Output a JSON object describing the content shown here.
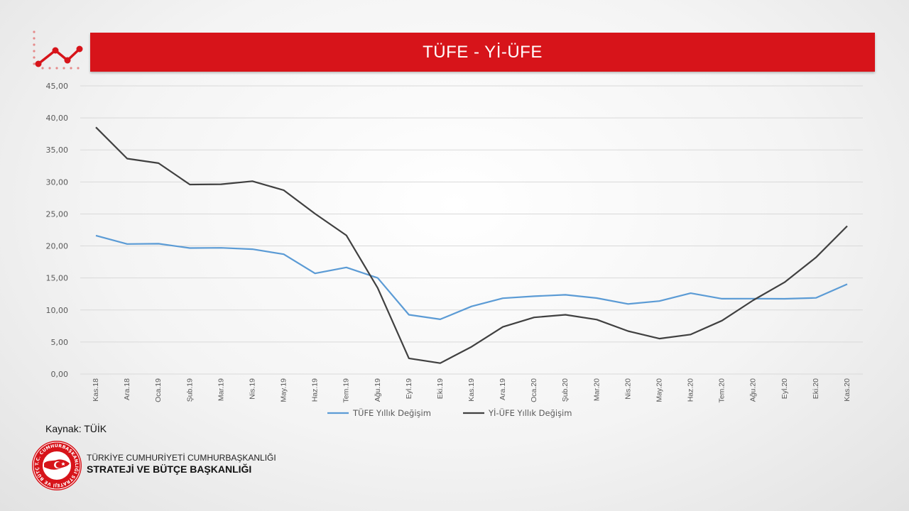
{
  "slide": {
    "title": "TÜFE - Yİ-ÜFE"
  },
  "footer": {
    "source": "Kaynak: TÜİK",
    "org_line1": "TÜRKİYE CUMHURİYETİ CUMHURBAŞKANLIĞI",
    "org_line2": "STRATEJİ VE BÜTÇE BAŞKANLIĞI",
    "logo_text": "T.C. CUMHURBAŞKANLIĞI STRATEJİ VE BÜTÇE BAŞKANLIĞI"
  },
  "colors": {
    "title_bar": "#d7141a",
    "tufe": "#5b9bd5",
    "yiufe": "#404040",
    "grid": "#d9d9d9",
    "logo_red": "#d7141a"
  },
  "icons": {
    "header_icon": "line-chart-icon",
    "logo": "seal-logo-icon"
  },
  "chart_data": {
    "type": "line",
    "categories": [
      "Kas.18",
      "Ara.18",
      "Oca.19",
      "Şub.19",
      "Mar.19",
      "Nis.19",
      "May.19",
      "Haz.19",
      "Tem.19",
      "Ağu.19",
      "Eyl.19",
      "Eki.19",
      "Kas.19",
      "Ara.19",
      "Oca.20",
      "Şub.20",
      "Mar.20",
      "Nis.20",
      "May.20",
      "Haz.20",
      "Tem.20",
      "Ağu.20",
      "Eyl.20",
      "Eki.20",
      "Kas.20"
    ],
    "y_ticks": [
      "0,00",
      "5,00",
      "10,00",
      "15,00",
      "20,00",
      "25,00",
      "30,00",
      "35,00",
      "40,00",
      "45,00"
    ],
    "ylim": [
      0,
      45
    ],
    "grid": true,
    "legend_position": "bottom",
    "series": [
      {
        "name": "TÜFE Yıllık Değişim",
        "color": "#5b9bd5",
        "values": [
          21.62,
          20.3,
          20.35,
          19.67,
          19.71,
          19.5,
          18.71,
          15.72,
          16.65,
          15.01,
          9.26,
          8.55,
          10.56,
          11.84,
          12.15,
          12.37,
          11.86,
          10.94,
          11.39,
          12.62,
          11.76,
          11.77,
          11.75,
          11.89,
          14.03
        ]
      },
      {
        "name": "Yİ-ÜFE Yıllık Değişim",
        "color": "#404040",
        "values": [
          38.54,
          33.64,
          32.93,
          29.59,
          29.64,
          30.12,
          28.71,
          25.04,
          21.66,
          13.45,
          2.45,
          1.7,
          4.26,
          7.36,
          8.84,
          9.26,
          8.5,
          6.71,
          5.53,
          6.17,
          8.33,
          11.53,
          14.33,
          18.2,
          23.11
        ]
      }
    ]
  }
}
